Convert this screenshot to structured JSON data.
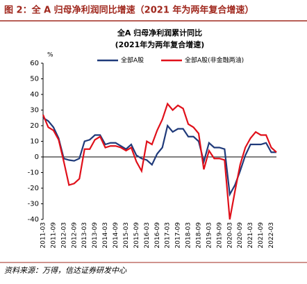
{
  "header": {
    "title": "图 2：全 A 归母净利润同比增速（2021 年为两年复合增速）"
  },
  "chart_data": {
    "type": "line",
    "title": "全A 归母净利润累计同比",
    "subtitle": "(2021年为两年复合增速)",
    "y_label": "%",
    "categories": [
      "2011-03",
      null,
      "2011-09",
      null,
      "2012-03",
      null,
      "2012-09",
      null,
      "2013-03",
      null,
      "2013-09",
      null,
      "2014-03",
      null,
      "2014-09",
      null,
      "2015-03",
      null,
      "2015-09",
      null,
      "2016-03",
      null,
      "2016-09",
      null,
      "2017-03",
      null,
      "2017-09",
      null,
      "2018-03",
      null,
      "2018-09",
      null,
      "2019-03",
      null,
      "2019-09",
      null,
      "2020-03",
      null,
      "2020-09",
      null,
      "2021-03",
      null,
      "2021-09",
      null,
      "2022-03",
      null
    ],
    "series": [
      {
        "name": "全部A股",
        "color": "#1f3a7a",
        "values": [
          25,
          23,
          19,
          12,
          -1,
          -2,
          -2.5,
          -1,
          10,
          11,
          14,
          14,
          8,
          9,
          9,
          7,
          5,
          8,
          1,
          -1,
          -2,
          -5,
          2,
          6,
          20,
          16,
          18,
          18,
          13,
          13,
          10,
          -3,
          9,
          6,
          6,
          5,
          -24,
          -18,
          -9,
          1,
          8,
          8,
          8,
          9,
          3,
          3
        ]
      },
      {
        "name": "全部A股(非金融两油)",
        "color": "#e0101a",
        "values": [
          27,
          19,
          17,
          11,
          -3,
          -18,
          -17,
          -14,
          5,
          5,
          11,
          13,
          6,
          7,
          7,
          6,
          4,
          6,
          -3,
          -9,
          10,
          8,
          17,
          24,
          34,
          30,
          33,
          31,
          21,
          19,
          15,
          -8,
          4,
          -1,
          -1,
          -2,
          -40,
          -22,
          -5,
          6,
          12,
          16,
          14,
          14,
          6,
          3
        ]
      }
    ],
    "ylim": [
      -40,
      60
    ],
    "yticks": [
      -40,
      -30,
      -20,
      -10,
      0,
      10,
      20,
      30,
      40,
      50,
      60
    ],
    "legend": "top"
  },
  "footer": {
    "source": "资料来源：万得，信达证券研发中心"
  }
}
